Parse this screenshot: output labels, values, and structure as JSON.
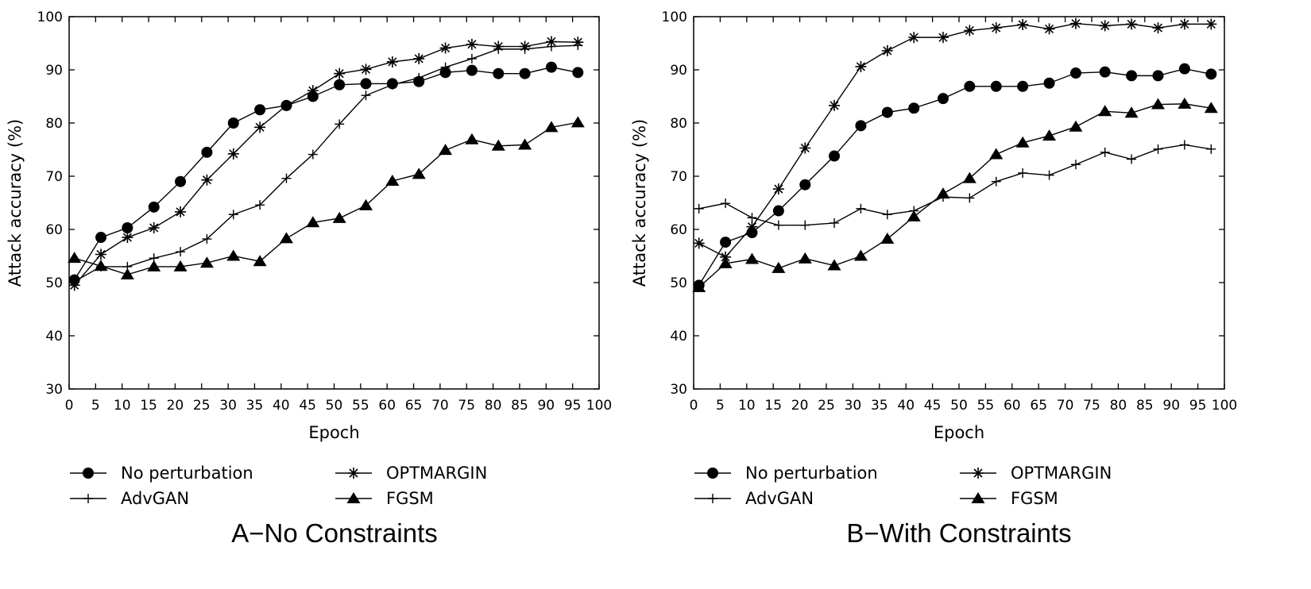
{
  "chart_data": [
    {
      "type": "line",
      "caption": "A−No Constraints",
      "xlabel": "Epoch",
      "ylabel": "Attack accuracy (%)",
      "xlim": [
        0,
        100
      ],
      "ylim": [
        30,
        100
      ],
      "xticks": [
        0,
        5,
        10,
        15,
        20,
        25,
        30,
        35,
        40,
        45,
        50,
        55,
        60,
        65,
        70,
        75,
        80,
        85,
        90,
        95,
        100
      ],
      "yticks": [
        30,
        40,
        50,
        60,
        70,
        80,
        90,
        100
      ],
      "x": [
        1,
        6,
        11,
        16,
        21,
        26,
        31,
        36,
        41,
        46,
        51,
        56,
        61,
        66,
        71,
        76,
        81,
        86,
        91,
        96
      ],
      "legend_position": "bottom",
      "series": [
        {
          "name": "No perturbation",
          "marker": "circle",
          "values": [
            50.5,
            58.5,
            60.3,
            64.2,
            69,
            74.5,
            80,
            82.5,
            83.3,
            85,
            87.2,
            87.4,
            87.4,
            87.8,
            89.5,
            89.9,
            89.3,
            89.3,
            90.5,
            89.5
          ]
        },
        {
          "name": "OPTMARGIN",
          "marker": "star",
          "values": [
            49.5,
            55.3,
            58.5,
            60.3,
            63.3,
            69.3,
            74.2,
            79.2,
            83.3,
            86.1,
            89.3,
            90.1,
            91.5,
            92.1,
            94.1,
            94.8,
            94.4,
            94.4,
            95.3,
            95.2
          ]
        },
        {
          "name": "AdvGAN",
          "marker": "plus",
          "values": [
            50.2,
            53,
            53,
            54.6,
            55.8,
            58.2,
            62.8,
            64.6,
            69.6,
            74.1,
            79.8,
            85.2,
            87.2,
            88.5,
            90.5,
            92.1,
            93.9,
            93.9,
            94.4,
            94.6
          ]
        },
        {
          "name": "FGSM",
          "marker": "triangle",
          "values": [
            54.6,
            53.1,
            51.5,
            53,
            53,
            53.7,
            55,
            54,
            58.3,
            61.3,
            62.1,
            64.5,
            69.1,
            70.4,
            74.9,
            76.9,
            75.7,
            75.9,
            79.2,
            80.1
          ]
        }
      ]
    },
    {
      "type": "line",
      "caption": "B−With Constraints",
      "xlabel": "Epoch",
      "ylabel": "Attack accuracy (%)",
      "xlim": [
        0,
        100
      ],
      "ylim": [
        30,
        100
      ],
      "xticks": [
        0,
        5,
        10,
        15,
        20,
        25,
        30,
        35,
        40,
        45,
        50,
        55,
        60,
        65,
        70,
        75,
        80,
        85,
        90,
        95,
        100
      ],
      "yticks": [
        30,
        40,
        50,
        60,
        70,
        80,
        90,
        100
      ],
      "x": [
        1,
        6,
        11,
        16,
        21,
        26.5,
        31.5,
        36.5,
        41.5,
        47,
        52,
        57,
        62,
        67,
        72,
        77.5,
        82.5,
        87.5,
        92.5,
        97.5
      ],
      "legend_position": "bottom",
      "series": [
        {
          "name": "No perturbation",
          "marker": "circle",
          "values": [
            49.5,
            57.6,
            59.4,
            63.5,
            68.4,
            73.8,
            79.5,
            82,
            82.8,
            84.6,
            86.9,
            86.9,
            86.9,
            87.5,
            89.4,
            89.6,
            88.9,
            88.9,
            90.2,
            89.2
          ]
        },
        {
          "name": "OPTMARGIN",
          "marker": "star",
          "values": [
            57.4,
            54.8,
            60.5,
            67.6,
            75.3,
            83.3,
            90.6,
            93.6,
            96.1,
            96.1,
            97.4,
            97.9,
            98.5,
            97.7,
            98.7,
            98.3,
            98.6,
            97.9,
            98.6,
            98.6
          ]
        },
        {
          "name": "AdvGAN",
          "marker": "plus",
          "values": [
            63.9,
            64.9,
            62.2,
            60.8,
            60.8,
            61.2,
            63.9,
            62.8,
            63.5,
            66.1,
            65.9,
            69,
            70.6,
            70.2,
            72.2,
            74.5,
            73.2,
            75.1,
            75.9,
            75.1
          ]
        },
        {
          "name": "FGSM",
          "marker": "triangle",
          "values": [
            49.1,
            53.6,
            54.4,
            52.7,
            54.5,
            53.2,
            55,
            58.2,
            62.4,
            66.7,
            69.6,
            74.1,
            76.3,
            77.6,
            79.3,
            82.2,
            81.9,
            83.5,
            83.6,
            82.8
          ]
        }
      ]
    }
  ]
}
